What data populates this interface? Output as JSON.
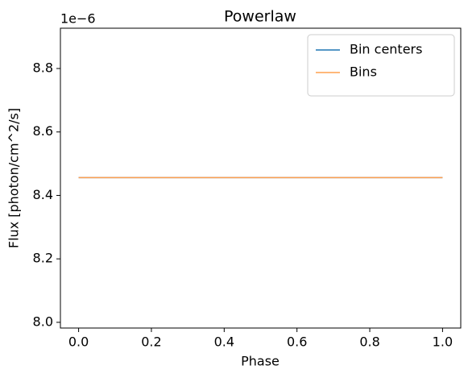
{
  "chart_data": {
    "type": "line",
    "title": "Powerlaw",
    "x_label": "Phase",
    "y_label": "Flux [photon/cm^2/s]",
    "y_offset_label": "1e−6",
    "x": [
      0,
      1
    ],
    "series": [
      {
        "name": "Bin centers",
        "color": "#1f77b4",
        "values": [
          8.456,
          8.456
        ]
      },
      {
        "name": "Bins",
        "color": "#ffa04f",
        "values": [
          8.456,
          8.456
        ]
      }
    ],
    "xlim": [
      -0.05,
      1.05
    ],
    "xticks": [
      {
        "value": 0,
        "label": "0.0"
      },
      0.2,
      0.4,
      0.6,
      0.8,
      {
        "value": 1,
        "label": "1.0"
      }
    ],
    "ylim": [
      7.982,
      8.927
    ],
    "yticks": [
      {
        "value": 8,
        "label": "8.0"
      },
      8.2,
      8.4,
      8.6,
      8.8
    ],
    "legend": "upper-right"
  }
}
